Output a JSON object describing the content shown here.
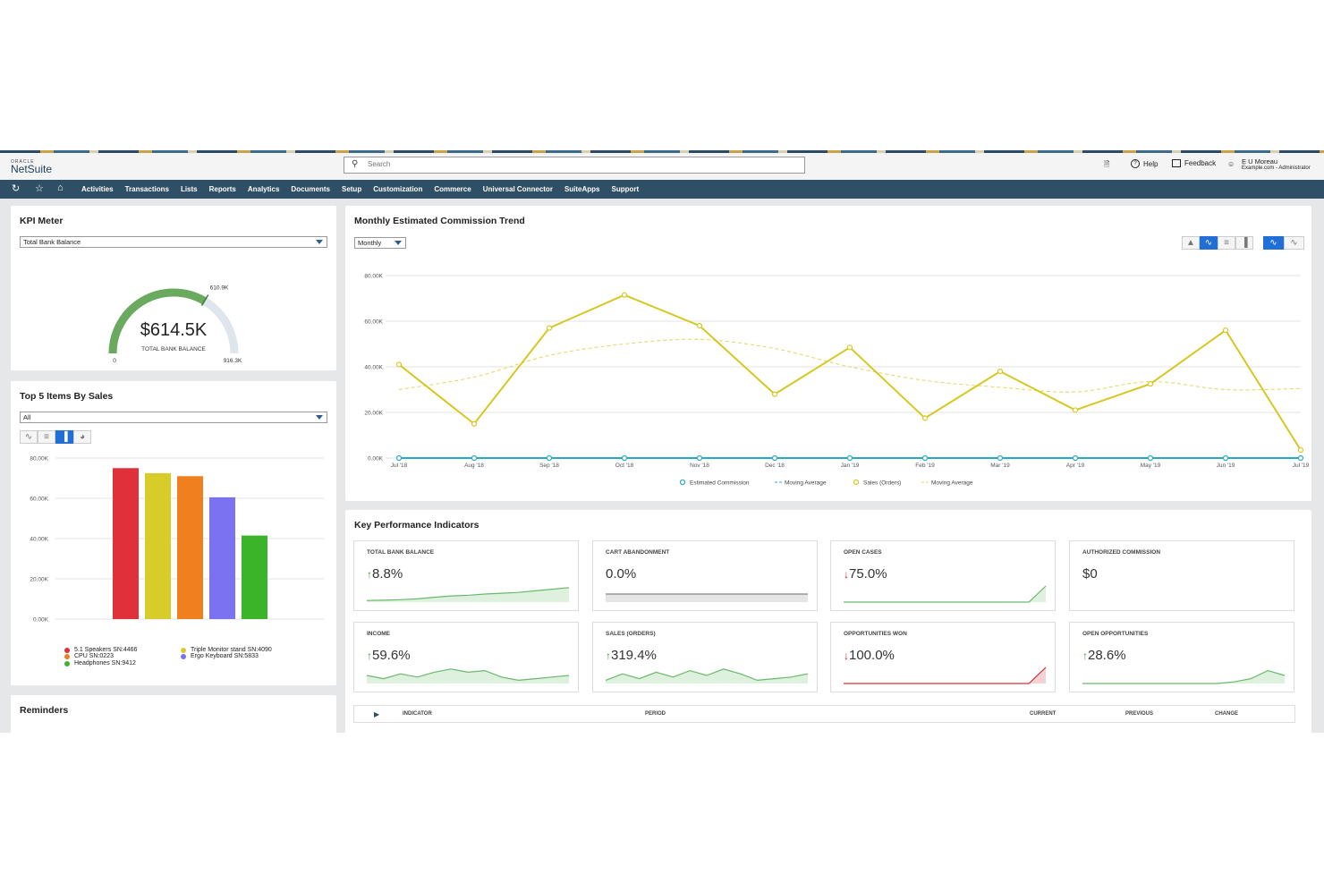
{
  "app": {
    "brand_small": "ORACLE",
    "brand": "NetSuite"
  },
  "search": {
    "placeholder": "Search"
  },
  "topbar": {
    "help": "Help",
    "feedback": "Feedback",
    "user_name": "E U Moreau",
    "user_role": "Example.com - Administrator"
  },
  "nav": {
    "items": [
      "Activities",
      "Transactions",
      "Lists",
      "Reports",
      "Analytics",
      "Documents",
      "Setup",
      "Customization",
      "Commerce",
      "Universal Connector",
      "SuiteApps",
      "Support"
    ]
  },
  "kpi_meter": {
    "title": "KPI Meter",
    "select": "Total Bank Balance",
    "value": "$614.5K",
    "value_label": "TOTAL BANK BALANCE",
    "min": "0",
    "max": "916.3K",
    "target": "610.9K",
    "fill_fraction": 0.67,
    "color": "#6aaa5e"
  },
  "top_items": {
    "title": "Top 5 Items By Sales",
    "select": "All",
    "chart_data": {
      "type": "bar",
      "categories": [
        "5.1 Speakers SN:4466",
        "Triple Monitor stand SN:4090",
        "CPU SN:0223",
        "Ergo Keyboard SN:5833",
        "Headphones SN:9412"
      ],
      "values": [
        75000,
        72500,
        71000,
        60500,
        41500
      ],
      "colors": [
        "#e0303a",
        "#d8cc2a",
        "#f0801e",
        "#7a72f0",
        "#3ab52a"
      ],
      "yticks": [
        "0.00K",
        "20.00K",
        "40.00K",
        "60.00K",
        "80.00K"
      ],
      "ylim": [
        0,
        80000
      ],
      "legend_position": "bottom"
    }
  },
  "reminders": {
    "title": "Reminders"
  },
  "commission": {
    "title": "Monthly Estimated Commission Trend",
    "select": "Monthly",
    "chart_data": {
      "type": "line",
      "x": [
        "Jul '18",
        "Aug '18",
        "Sep '18",
        "Oct '18",
        "Nov '18",
        "Dec '18",
        "Jan '19",
        "Feb '19",
        "Mar '19",
        "Apr '19",
        "May '19",
        "Jun '19",
        "Jul '19"
      ],
      "ylim": [
        0,
        80000
      ],
      "yticks": [
        "0.00K",
        "20.00K",
        "40.00K",
        "60.00K",
        "80.00K"
      ],
      "series": [
        {
          "name": "Estimated Commission",
          "color": "#2aa8c8",
          "values": [
            0,
            0,
            0,
            0,
            0,
            0,
            0,
            0,
            0,
            0,
            0,
            0,
            0
          ]
        },
        {
          "name": "Moving Average",
          "color": "#2aa8c8",
          "dashed": true,
          "values": [
            0,
            0,
            0,
            0,
            0,
            0,
            0,
            0,
            0,
            0,
            0,
            0,
            0
          ]
        },
        {
          "name": "Sales (Orders)",
          "color": "#d6c820",
          "values": [
            41000,
            15000,
            57000,
            71500,
            58000,
            28000,
            48500,
            17500,
            38000,
            21000,
            32500,
            56000,
            3500
          ]
        },
        {
          "name": "Moving Average",
          "color": "#e8d460",
          "dashed": true,
          "values": [
            30000,
            35500,
            45000,
            50000,
            52000,
            48000,
            40000,
            34000,
            31000,
            29000,
            33500,
            30000,
            30500
          ]
        }
      ],
      "legend_position": "bottom"
    }
  },
  "kpis": {
    "title": "Key Performance Indicators",
    "cards": [
      {
        "label": "TOTAL BANK BALANCE",
        "value": "8.8%",
        "dir": "up",
        "spark": [
          0.1,
          0.12,
          0.15,
          0.2,
          0.3,
          0.38,
          0.42,
          0.5,
          0.55,
          0.6,
          0.7,
          0.8,
          0.9
        ],
        "color": "#6ab96a"
      },
      {
        "label": "CART ABANDONMENT",
        "value": "0.0%",
        "dir": "none",
        "spark": [
          0.5,
          0.5,
          0.5,
          0.5,
          0.5,
          0.5,
          0.5,
          0.5,
          0.5,
          0.5,
          0.5,
          0.5,
          0.5
        ],
        "color": "#888888"
      },
      {
        "label": "OPEN CASES",
        "value": "75.0%",
        "dir": "down",
        "spark": [
          0,
          0,
          0,
          0,
          0,
          0,
          0,
          0,
          0,
          0,
          0,
          0,
          1
        ],
        "color": "#6ab96a"
      },
      {
        "label": "AUTHORIZED COMMISSION",
        "value": "$0",
        "dir": "none",
        "spark": [],
        "color": "#888888"
      },
      {
        "label": "INCOME",
        "value": "59.6%",
        "dir": "up",
        "spark": [
          0.5,
          0.3,
          0.6,
          0.4,
          0.7,
          0.9,
          0.7,
          0.8,
          0.4,
          0.2,
          0.3,
          0.4,
          0.5
        ],
        "color": "#6ab96a"
      },
      {
        "label": "SALES (ORDERS)",
        "value": "319.4%",
        "dir": "up",
        "spark": [
          0.2,
          0.6,
          0.3,
          0.7,
          0.4,
          0.8,
          0.5,
          0.9,
          0.6,
          0.2,
          0.3,
          0.4,
          0.6
        ],
        "color": "#6ab96a"
      },
      {
        "label": "OPPORTUNITIES WON",
        "value": "100.0%",
        "dir": "down",
        "spark": [
          0,
          0,
          0,
          0,
          0,
          0,
          0,
          0,
          0,
          0,
          0,
          0,
          1
        ],
        "color": "#d2303a"
      },
      {
        "label": "OPEN OPPORTUNITIES",
        "value": "28.6%",
        "dir": "up",
        "spark": [
          0,
          0,
          0,
          0,
          0,
          0,
          0,
          0,
          0,
          0.1,
          0.3,
          0.8,
          0.5
        ],
        "color": "#6ab96a"
      }
    ],
    "table_headers": {
      "indicator": "INDICATOR",
      "period": "PERIOD",
      "current": "CURRENT",
      "previous": "PREVIOUS",
      "change": "CHANGE"
    }
  }
}
